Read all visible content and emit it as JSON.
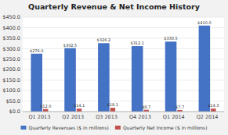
{
  "chart_data": {
    "type": "bar",
    "title": "Quarterly Revenue & Net Income History",
    "categories": [
      "Q1 2013",
      "Q2 2013",
      "Q3 2013",
      "Q4 2013",
      "Q1 2014",
      "Q2 2014"
    ],
    "series": [
      {
        "name": "Quarterly Revenues ($ in millions)",
        "color": "#4472C4",
        "values": [
          276.0,
          302.5,
          326.2,
          312.1,
          333.5,
          410.0
        ],
        "value_labels": [
          "$276.0",
          "$302.5",
          "$326.2",
          "$312.1",
          "$333.5",
          "$410.0"
        ]
      },
      {
        "name": "Quarterly Net Income ($ in millions)",
        "color": "#C0504D",
        "values": [
          12.0,
          14.1,
          18.1,
          8.7,
          7.7,
          14.3
        ],
        "value_labels": [
          "$12.0",
          "$14.1",
          "$18.1",
          "$8.7",
          "$7.7",
          "$14.3"
        ]
      }
    ],
    "ylim": [
      0,
      450
    ],
    "yticks": [
      {
        "value": 0,
        "label": "$0.0"
      },
      {
        "value": 50,
        "label": "$50.0"
      },
      {
        "value": 100,
        "label": "$100.0"
      },
      {
        "value": 150,
        "label": "$150.0"
      },
      {
        "value": 200,
        "label": "$200.0"
      },
      {
        "value": 250,
        "label": "$250.0"
      },
      {
        "value": 300,
        "label": "$300.0"
      },
      {
        "value": 350,
        "label": "$350.0"
      },
      {
        "value": 400,
        "label": "$400.0"
      },
      {
        "value": 450,
        "label": "$450.0"
      }
    ],
    "grid": true,
    "legend": "bottom",
    "data_labels": true
  }
}
